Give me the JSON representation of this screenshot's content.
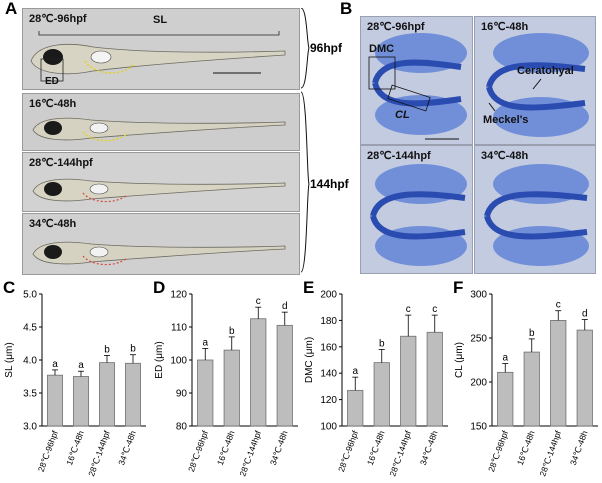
{
  "panel_a": {
    "letter": "A",
    "photos": [
      {
        "label": "28℃-96hpf"
      },
      {
        "label": "16℃-48h"
      },
      {
        "label": "28℃-144hpf"
      },
      {
        "label": "34℃-48h"
      }
    ],
    "sl_label": "SL",
    "ed_label": "ED",
    "group_96": "96hpf",
    "group_144": "144hpf"
  },
  "panel_b": {
    "letter": "B",
    "images": [
      {
        "label": "28℃-96hpf"
      },
      {
        "label": "16℃-48h"
      },
      {
        "label": "28℃-144hpf"
      },
      {
        "label": "34℃-48h"
      }
    ],
    "dmc_label": "DMC",
    "cl_label": "CL",
    "ceratohyal_label": "Ceratohyal",
    "meckels_label": "Meckel's"
  },
  "chart_data": [
    {
      "type": "bar",
      "letter": "C",
      "ylabel": "SL (μm)",
      "categories": [
        "28℃-96hpf",
        "16℃-48h",
        "28℃-144hpf",
        "34℃-48h"
      ],
      "values": [
        3.77,
        3.75,
        3.96,
        3.95
      ],
      "errors": [
        0.08,
        0.08,
        0.11,
        0.13
      ],
      "letters": [
        "a",
        "a",
        "b",
        "b"
      ],
      "ylim": [
        3.0,
        5.0
      ],
      "yticks": [
        "3.0",
        "3.5",
        "4.0",
        "4.5",
        "5.0"
      ]
    },
    {
      "type": "bar",
      "letter": "D",
      "ylabel": "ED (μm)",
      "categories": [
        "28℃-96hpf",
        "16℃-48h",
        "28℃-144hpf",
        "34℃-48h"
      ],
      "values": [
        100,
        103,
        112.5,
        110.5
      ],
      "errors": [
        3.5,
        4,
        3.5,
        4
      ],
      "letters": [
        "a",
        "b",
        "c",
        "d"
      ],
      "ylim": [
        80,
        120
      ],
      "yticks": [
        "80",
        "90",
        "100",
        "110",
        "120"
      ]
    },
    {
      "type": "bar",
      "letter": "E",
      "ylabel": "DMC (μm)",
      "categories": [
        "28℃-96hpf",
        "16℃-48h",
        "28℃-144hpf",
        "34℃-48h"
      ],
      "values": [
        127,
        148,
        168,
        171
      ],
      "errors": [
        10,
        10,
        16,
        13
      ],
      "letters": [
        "a",
        "b",
        "c",
        "c"
      ],
      "ylim": [
        100,
        200
      ],
      "yticks": [
        "100",
        "120",
        "140",
        "160",
        "180",
        "200"
      ]
    },
    {
      "type": "bar",
      "letter": "F",
      "ylabel": "CL (μm)",
      "categories": [
        "28℃-96hpf",
        "16℃-48h",
        "28℃-144hpf",
        "34℃-48h"
      ],
      "values": [
        211,
        234,
        270,
        259
      ],
      "errors": [
        10,
        15,
        11,
        12
      ],
      "letters": [
        "a",
        "b",
        "c",
        "d"
      ],
      "ylim": [
        150,
        300
      ],
      "yticks": [
        "150",
        "200",
        "250",
        "300"
      ]
    }
  ],
  "colors": {
    "bar": "#bdbdbd",
    "bar_edge": "#6f6f6f",
    "cartilage": "#2b4fb3",
    "photo_bg": "#c9c9c9"
  }
}
